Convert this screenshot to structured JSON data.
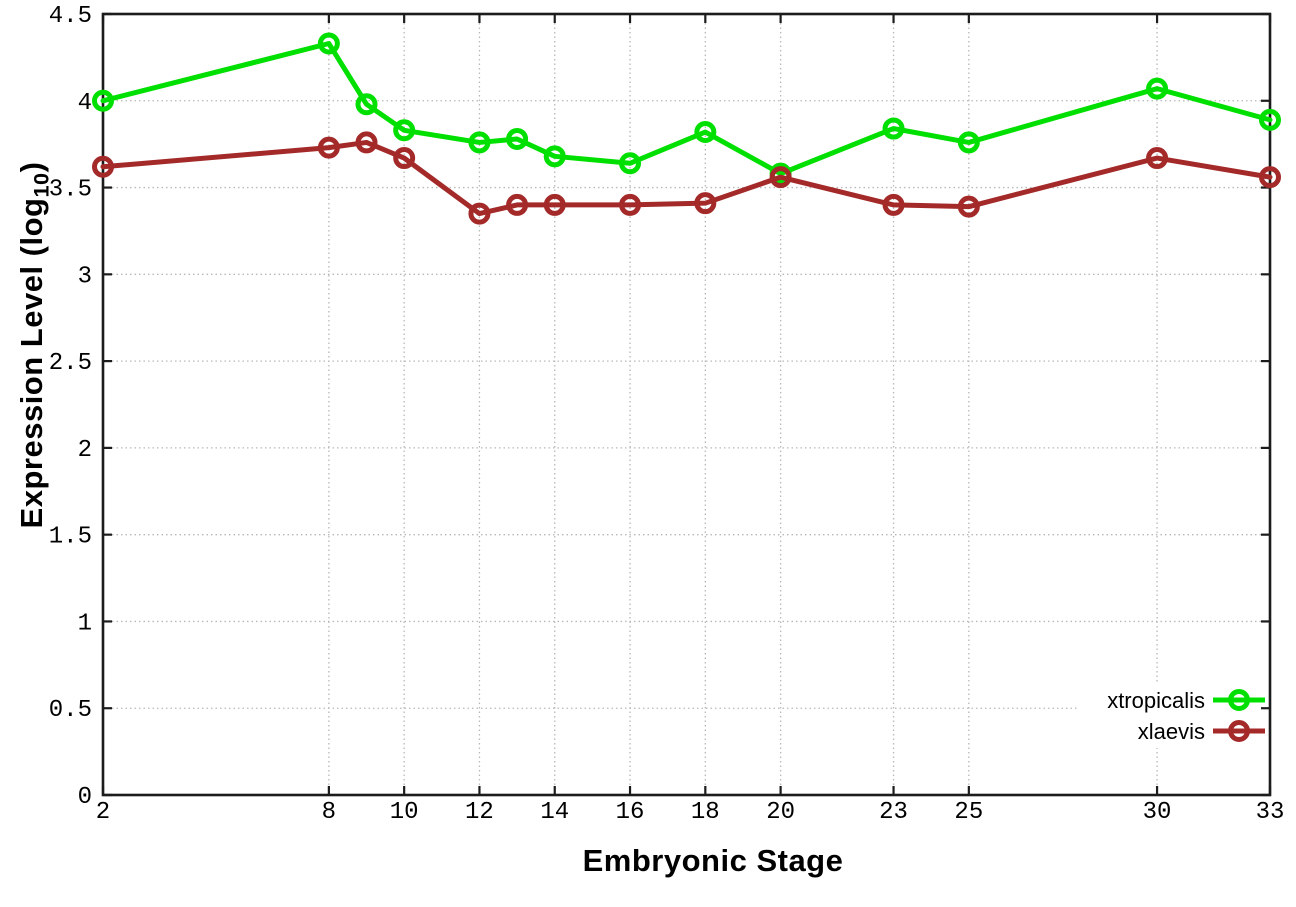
{
  "chart_data": {
    "type": "line",
    "title": "",
    "xlabel": "Embryonic Stage",
    "ylabel": "Expression Level (log10)",
    "ylabel_parts": {
      "pre": "Expression Level (log",
      "sub": "10",
      "post": ")"
    },
    "x": [
      2,
      8,
      9,
      10,
      12,
      13,
      14,
      16,
      18,
      20,
      23,
      25,
      30,
      33
    ],
    "series": [
      {
        "name": "xtropicalis",
        "color": "#00e000",
        "values": [
          4.0,
          4.33,
          3.98,
          3.83,
          3.76,
          3.78,
          3.68,
          3.64,
          3.82,
          3.58,
          3.84,
          3.76,
          4.07,
          3.89
        ]
      },
      {
        "name": "xlaevis",
        "color": "#a42a2a",
        "values": [
          3.62,
          3.73,
          3.76,
          3.67,
          3.35,
          3.4,
          3.4,
          3.4,
          3.41,
          3.56,
          3.4,
          3.39,
          3.67,
          3.56
        ]
      }
    ],
    "xticks": {
      "values": [
        2,
        8,
        10,
        12,
        14,
        16,
        18,
        20,
        23,
        25,
        30,
        33
      ],
      "labels": [
        "2",
        "8",
        "10",
        "12",
        "14",
        "16",
        "18",
        "20",
        "23",
        "25",
        "30",
        "33"
      ]
    },
    "yticks": {
      "values": [
        0,
        0.5,
        1,
        1.5,
        2,
        2.5,
        3,
        3.5,
        4,
        4.5
      ],
      "labels": [
        "0",
        "0.5",
        "1",
        "1.5",
        "2",
        "2.5",
        "3",
        "3.5",
        "4",
        "4.5"
      ]
    },
    "xlim": [
      2,
      33
    ],
    "ylim": [
      0,
      4.5
    ],
    "grid": true,
    "legend": {
      "position": "bottom-right-inside",
      "entries": [
        "xtropicalis",
        "xlaevis"
      ]
    },
    "style": {
      "border_color": "#1c1c1c",
      "grid_color": "#b8b8b8",
      "background": "#ffffff",
      "line_width": 5,
      "marker_radius": 8.5,
      "marker_stroke": 5
    }
  }
}
